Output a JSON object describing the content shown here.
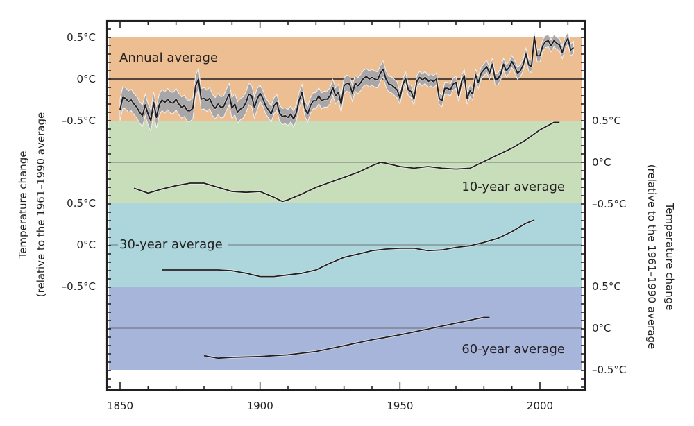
{
  "chart_data": {
    "type": "line",
    "title": "",
    "xlabel": "",
    "ylabel_left": [
      "Temperature change",
      "(relative to the 1961–1990 average"
    ],
    "ylabel_right": [
      "Temperature change",
      "(relative to the 1961–1990 average"
    ],
    "xlim": [
      1845,
      2016
    ],
    "x_ticks": [
      1850,
      1900,
      1950,
      2000
    ],
    "x_tick_labels": [
      "1850",
      "1900",
      "1950",
      "2000"
    ],
    "grid": false,
    "panels": [
      {
        "name": "Annual average",
        "label": "Annual average",
        "band_color": "#EDBE92",
        "ylim": [
          -0.5,
          0.5
        ],
        "y_ticks": [
          0.5,
          0,
          -0.5
        ],
        "y_tick_labels": [
          "0.5°C",
          "0°C",
          "–0.5°C"
        ],
        "axis_side": "left",
        "uncertainty_band": true,
        "x": [
          1850,
          1851,
          1852,
          1853,
          1854,
          1855,
          1856,
          1857,
          1858,
          1859,
          1860,
          1861,
          1862,
          1863,
          1864,
          1865,
          1866,
          1867,
          1868,
          1869,
          1870,
          1871,
          1872,
          1873,
          1874,
          1875,
          1876,
          1877,
          1878,
          1879,
          1880,
          1881,
          1882,
          1883,
          1884,
          1885,
          1886,
          1887,
          1888,
          1889,
          1890,
          1891,
          1892,
          1893,
          1894,
          1895,
          1896,
          1897,
          1898,
          1899,
          1900,
          1901,
          1902,
          1903,
          1904,
          1905,
          1906,
          1907,
          1908,
          1909,
          1910,
          1911,
          1912,
          1913,
          1914,
          1915,
          1916,
          1917,
          1918,
          1919,
          1920,
          1921,
          1922,
          1923,
          1924,
          1925,
          1926,
          1927,
          1928,
          1929,
          1930,
          1931,
          1932,
          1933,
          1934,
          1935,
          1936,
          1937,
          1938,
          1939,
          1940,
          1941,
          1942,
          1943,
          1944,
          1945,
          1946,
          1947,
          1948,
          1949,
          1950,
          1951,
          1952,
          1953,
          1954,
          1955,
          1956,
          1957,
          1958,
          1959,
          1960,
          1961,
          1962,
          1963,
          1964,
          1965,
          1966,
          1967,
          1968,
          1969,
          1970,
          1971,
          1972,
          1973,
          1974,
          1975,
          1976,
          1977,
          1978,
          1979,
          1980,
          1981,
          1982,
          1983,
          1984,
          1985,
          1986,
          1987,
          1988,
          1989,
          1990,
          1991,
          1992,
          1993,
          1994,
          1995,
          1996,
          1997,
          1998,
          1999,
          2000,
          2001,
          2002,
          2003,
          2004,
          2005,
          2006,
          2007,
          2008,
          2009,
          2010,
          2011,
          2012
        ],
        "values": [
          -0.37,
          -0.22,
          -0.23,
          -0.27,
          -0.25,
          -0.3,
          -0.34,
          -0.4,
          -0.44,
          -0.31,
          -0.42,
          -0.5,
          -0.28,
          -0.46,
          -0.31,
          -0.25,
          -0.28,
          -0.24,
          -0.28,
          -0.29,
          -0.24,
          -0.3,
          -0.34,
          -0.32,
          -0.38,
          -0.38,
          -0.35,
          -0.08,
          0.0,
          -0.24,
          -0.23,
          -0.26,
          -0.23,
          -0.31,
          -0.35,
          -0.3,
          -0.34,
          -0.33,
          -0.25,
          -0.18,
          -0.35,
          -0.3,
          -0.4,
          -0.36,
          -0.34,
          -0.28,
          -0.18,
          -0.2,
          -0.34,
          -0.24,
          -0.17,
          -0.23,
          -0.32,
          -0.37,
          -0.42,
          -0.32,
          -0.28,
          -0.41,
          -0.45,
          -0.44,
          -0.46,
          -0.42,
          -0.48,
          -0.4,
          -0.25,
          -0.16,
          -0.35,
          -0.42,
          -0.32,
          -0.26,
          -0.26,
          -0.2,
          -0.26,
          -0.24,
          -0.24,
          -0.2,
          -0.1,
          -0.2,
          -0.16,
          -0.3,
          -0.08,
          -0.05,
          -0.06,
          -0.17,
          -0.05,
          -0.08,
          -0.04,
          0.01,
          0.03,
          0.0,
          0.02,
          0.0,
          -0.01,
          0.07,
          0.12,
          0.0,
          -0.06,
          -0.07,
          -0.1,
          -0.13,
          -0.23,
          -0.07,
          0.01,
          -0.13,
          -0.15,
          -0.24,
          -0.03,
          0.02,
          -0.01,
          0.02,
          -0.03,
          -0.01,
          -0.03,
          0.0,
          -0.23,
          -0.26,
          -0.11,
          -0.11,
          -0.13,
          -0.06,
          -0.04,
          -0.2,
          -0.03,
          0.04,
          -0.23,
          -0.14,
          -0.18,
          0.05,
          -0.04,
          0.07,
          0.11,
          0.15,
          0.07,
          0.18,
          0.0,
          0.0,
          0.06,
          0.18,
          0.1,
          0.14,
          0.21,
          0.15,
          0.07,
          0.1,
          0.17,
          0.3,
          0.17,
          0.15,
          0.51,
          0.28,
          0.28,
          0.4,
          0.45,
          0.46,
          0.4,
          0.46,
          0.43,
          0.41,
          0.32,
          0.43,
          0.49,
          0.35,
          0.38
        ],
        "uncertainty_halfwidth": 0.08
      },
      {
        "name": "10-year average",
        "label": "10-year average",
        "band_color": "#C8DDBA",
        "ylim": [
          -0.5,
          0.5
        ],
        "y_ticks": [
          0.5,
          0,
          -0.5
        ],
        "y_tick_labels": [
          "0.5°C",
          "0°C",
          "–0.5°C"
        ],
        "axis_side": "right",
        "x": [
          1855,
          1860,
          1865,
          1870,
          1875,
          1880,
          1885,
          1890,
          1895,
          1900,
          1905,
          1908,
          1910,
          1915,
          1920,
          1925,
          1930,
          1935,
          1940,
          1943,
          1945,
          1950,
          1955,
          1960,
          1965,
          1970,
          1975,
          1980,
          1985,
          1990,
          1995,
          2000,
          2005,
          2007
        ],
        "values": [
          -0.31,
          -0.37,
          -0.32,
          -0.28,
          -0.25,
          -0.25,
          -0.3,
          -0.35,
          -0.36,
          -0.35,
          -0.42,
          -0.47,
          -0.45,
          -0.38,
          -0.3,
          -0.24,
          -0.18,
          -0.12,
          -0.04,
          0.0,
          -0.01,
          -0.05,
          -0.07,
          -0.05,
          -0.07,
          -0.08,
          -0.07,
          0.01,
          0.09,
          0.17,
          0.27,
          0.39,
          0.48,
          0.48
        ]
      },
      {
        "name": "30-year average",
        "label": "30-year average",
        "band_color": "#ADD6DC",
        "ylim": [
          -0.5,
          0.5
        ],
        "y_ticks": [
          0.5,
          0,
          -0.5
        ],
        "y_tick_labels": [
          "0.5°C",
          "0°C",
          "–0.5°C"
        ],
        "axis_side": "left",
        "x": [
          1865,
          1870,
          1875,
          1880,
          1885,
          1890,
          1895,
          1900,
          1905,
          1910,
          1915,
          1920,
          1925,
          1930,
          1935,
          1940,
          1945,
          1950,
          1955,
          1960,
          1965,
          1970,
          1975,
          1980,
          1985,
          1990,
          1995,
          1998
        ],
        "values": [
          -0.3,
          -0.3,
          -0.3,
          -0.3,
          -0.3,
          -0.31,
          -0.34,
          -0.38,
          -0.38,
          -0.36,
          -0.34,
          -0.3,
          -0.22,
          -0.15,
          -0.11,
          -0.07,
          -0.05,
          -0.04,
          -0.04,
          -0.07,
          -0.06,
          -0.03,
          -0.01,
          0.03,
          0.08,
          0.16,
          0.26,
          0.3
        ]
      },
      {
        "name": "60-year average",
        "label": "60-year average",
        "band_color": "#A7B5DB",
        "ylim": [
          -0.5,
          0.5
        ],
        "y_ticks": [
          0.5,
          0,
          -0.5
        ],
        "y_tick_labels": [
          "0.5°C",
          "0°C",
          "–0.5°C"
        ],
        "axis_side": "right",
        "x": [
          1880,
          1885,
          1890,
          1900,
          1910,
          1920,
          1930,
          1940,
          1950,
          1960,
          1970,
          1980,
          1982
        ],
        "values": [
          -0.33,
          -0.36,
          -0.35,
          -0.34,
          -0.32,
          -0.28,
          -0.21,
          -0.14,
          -0.08,
          -0.01,
          0.06,
          0.13,
          0.13
        ]
      }
    ],
    "line_color": "#231f20",
    "uncertainty_color": "#a9a6a8"
  }
}
